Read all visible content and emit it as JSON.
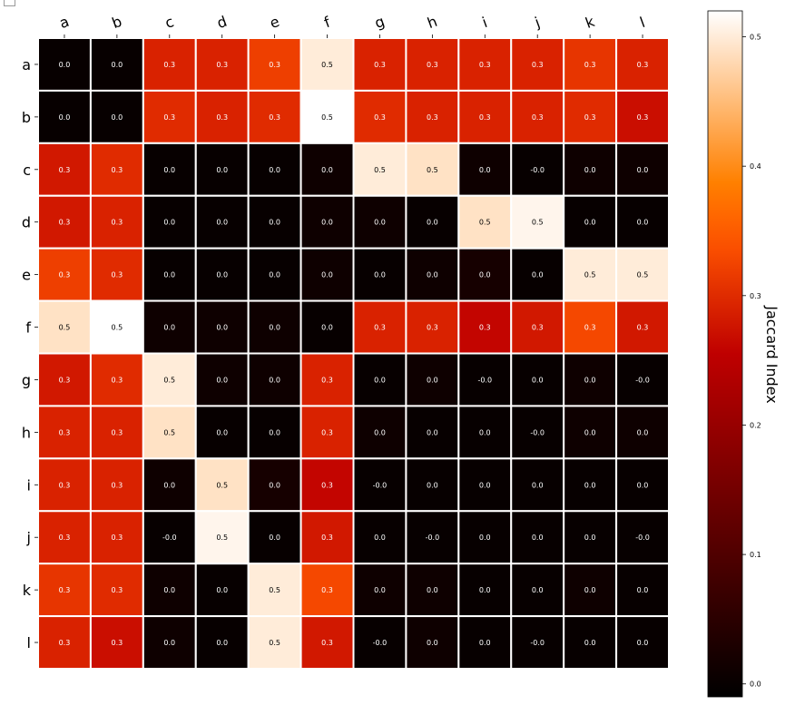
{
  "chart_data": {
    "type": "heatmap",
    "rows": [
      "a",
      "b",
      "c",
      "d",
      "e",
      "f",
      "g",
      "h",
      "i",
      "j",
      "k",
      "l"
    ],
    "columns": [
      "a",
      "b",
      "c",
      "d",
      "e",
      "f",
      "g",
      "h",
      "i",
      "j",
      "k",
      "l"
    ],
    "values": [
      [
        0.0,
        0.0,
        0.29,
        0.29,
        0.32,
        0.5,
        0.29,
        0.29,
        0.29,
        0.29,
        0.31,
        0.29
      ],
      [
        0.0,
        0.0,
        0.3,
        0.29,
        0.3,
        0.52,
        0.3,
        0.29,
        0.29,
        0.29,
        0.3,
        0.27
      ],
      [
        0.28,
        0.3,
        0.0,
        0.0,
        0.0,
        0.01,
        0.5,
        0.49,
        0.01,
        -0.0,
        0.01,
        0.01
      ],
      [
        0.28,
        0.29,
        0.0,
        0.0,
        0.0,
        0.01,
        0.01,
        0.0,
        0.49,
        0.51,
        0.0,
        0.0
      ],
      [
        0.32,
        0.3,
        0.0,
        0.0,
        0.0,
        0.01,
        0.0,
        0.01,
        0.02,
        0.0,
        0.5,
        0.5
      ],
      [
        0.49,
        0.52,
        0.01,
        0.01,
        0.01,
        0.0,
        0.29,
        0.29,
        0.26,
        0.28,
        0.33,
        0.28
      ],
      [
        0.28,
        0.3,
        0.5,
        0.01,
        0.01,
        0.29,
        0.0,
        0.01,
        -0.0,
        0.0,
        0.01,
        -0.0
      ],
      [
        0.29,
        0.29,
        0.49,
        0.0,
        0.0,
        0.29,
        0.01,
        0.0,
        0.0,
        -0.0,
        0.01,
        0.01
      ],
      [
        0.29,
        0.29,
        0.01,
        0.49,
        0.02,
        0.26,
        -0.0,
        0.0,
        0.0,
        0.0,
        0.0,
        0.0
      ],
      [
        0.29,
        0.29,
        -0.0,
        0.51,
        0.0,
        0.28,
        0.0,
        -0.0,
        0.0,
        0.0,
        0.0,
        -0.0
      ],
      [
        0.31,
        0.3,
        0.01,
        0.0,
        0.5,
        0.33,
        0.01,
        0.01,
        0.0,
        0.0,
        0.01,
        0.0
      ],
      [
        0.29,
        0.27,
        0.01,
        0.0,
        0.5,
        0.28,
        -0.0,
        0.01,
        0.0,
        -0.0,
        0.0,
        0.0
      ]
    ],
    "annotations": [
      [
        "0.0",
        "0.0",
        "0.3",
        "0.3",
        "0.3",
        "0.5",
        "0.3",
        "0.3",
        "0.3",
        "0.3",
        "0.3",
        "0.3"
      ],
      [
        "0.0",
        "0.0",
        "0.3",
        "0.3",
        "0.3",
        "0.5",
        "0.3",
        "0.3",
        "0.3",
        "0.3",
        "0.3",
        "0.3"
      ],
      [
        "0.3",
        "0.3",
        "0.0",
        "0.0",
        "0.0",
        "0.0",
        "0.5",
        "0.5",
        "0.0",
        "-0.0",
        "0.0",
        "0.0"
      ],
      [
        "0.3",
        "0.3",
        "0.0",
        "0.0",
        "0.0",
        "0.0",
        "0.0",
        "0.0",
        "0.5",
        "0.5",
        "0.0",
        "0.0"
      ],
      [
        "0.3",
        "0.3",
        "0.0",
        "0.0",
        "0.0",
        "0.0",
        "0.0",
        "0.0",
        "0.0",
        "0.0",
        "0.5",
        "0.5"
      ],
      [
        "0.5",
        "0.5",
        "0.0",
        "0.0",
        "0.0",
        "0.0",
        "0.3",
        "0.3",
        "0.3",
        "0.3",
        "0.3",
        "0.3"
      ],
      [
        "0.3",
        "0.3",
        "0.5",
        "0.0",
        "0.0",
        "0.3",
        "0.0",
        "0.0",
        "-0.0",
        "0.0",
        "0.0",
        "-0.0"
      ],
      [
        "0.3",
        "0.3",
        "0.5",
        "0.0",
        "0.0",
        "0.3",
        "0.0",
        "0.0",
        "0.0",
        "-0.0",
        "0.0",
        "0.0"
      ],
      [
        "0.3",
        "0.3",
        "0.0",
        "0.5",
        "0.0",
        "0.3",
        "-0.0",
        "0.0",
        "0.0",
        "0.0",
        "0.0",
        "0.0"
      ],
      [
        "0.3",
        "0.3",
        "-0.0",
        "0.5",
        "0.0",
        "0.3",
        "0.0",
        "-0.0",
        "0.0",
        "0.0",
        "0.0",
        "-0.0"
      ],
      [
        "0.3",
        "0.3",
        "0.0",
        "0.0",
        "0.5",
        "0.3",
        "0.0",
        "0.0",
        "0.0",
        "0.0",
        "0.0",
        "0.0"
      ],
      [
        "0.3",
        "0.3",
        "0.0",
        "0.0",
        "0.5",
        "0.3",
        "-0.0",
        "0.0",
        "0.0",
        "-0.0",
        "0.0",
        "0.0"
      ]
    ],
    "colormap": "gist_heat",
    "colorbar": {
      "label": "Jaccard Index",
      "range": [
        -0.01,
        0.52
      ],
      "ticks": [
        0.0,
        0.1,
        0.2,
        0.3,
        0.4,
        0.5
      ],
      "tick_labels": [
        "0.0",
        "0.1",
        "0.2",
        "0.3",
        "0.4",
        "0.5"
      ]
    },
    "cell_separator_color": "#ffffff",
    "column_label_rotation": "tilted"
  }
}
